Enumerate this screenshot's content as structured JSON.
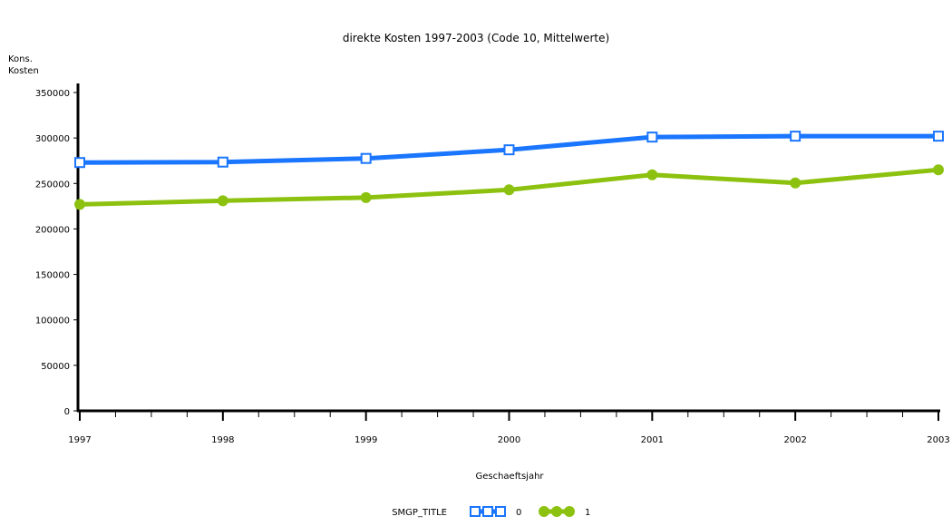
{
  "chart_data": {
    "type": "line",
    "title": "direkte Kosten 1997-2003 (Code 10, Mittelwerte)",
    "xlabel": "Geschaeftsjahr",
    "ylabel_lines": [
      "Kons.",
      "Kosten"
    ],
    "x": [
      1997,
      1998,
      1999,
      2000,
      2001,
      2002,
      2003
    ],
    "ylim": [
      0,
      350000
    ],
    "yticks": [
      0,
      50000,
      100000,
      150000,
      200000,
      250000,
      300000,
      350000
    ],
    "legend_title": "SMGP_TITLE",
    "legend_position": "bottom-center",
    "series": [
      {
        "name": "0",
        "color": "#1a75ff",
        "marker": "square",
        "values": [
          273000,
          273500,
          277500,
          287000,
          301000,
          302000,
          302000
        ]
      },
      {
        "name": "1",
        "color": "#8cc20f",
        "marker": "circle",
        "values": [
          227000,
          231000,
          234500,
          243000,
          259500,
          250500,
          265000
        ]
      }
    ]
  }
}
